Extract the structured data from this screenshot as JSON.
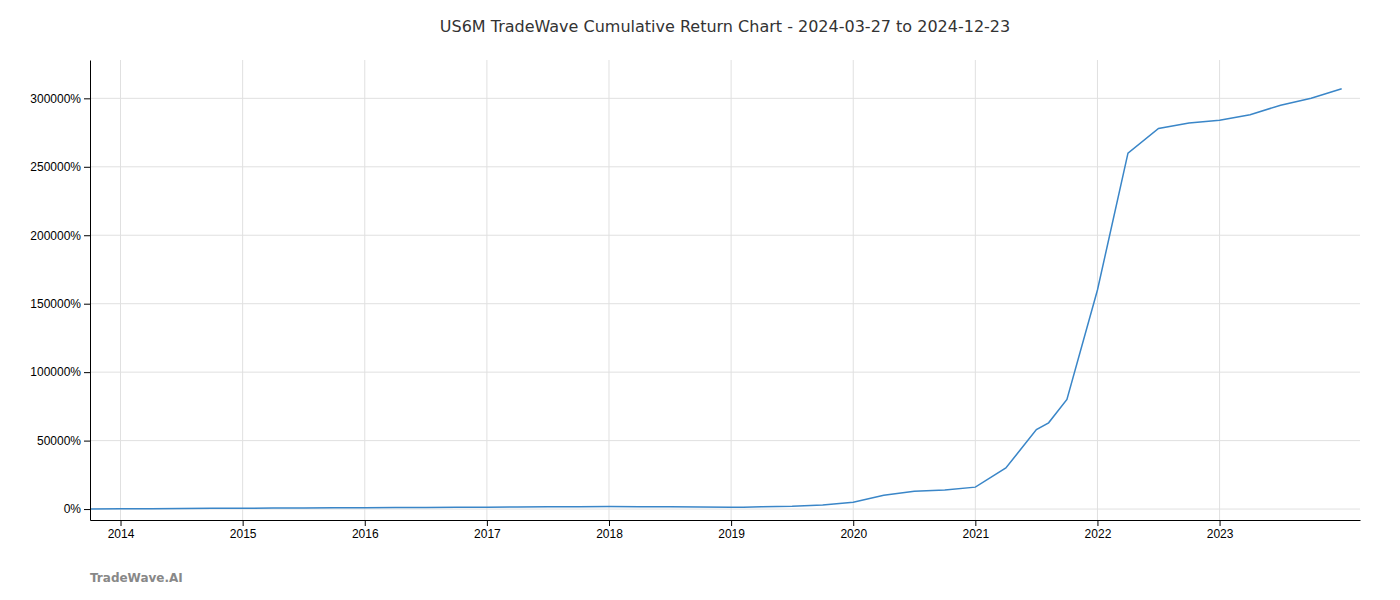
{
  "chart_data": {
    "type": "line",
    "title": "US6M TradeWave Cumulative Return Chart - 2024-03-27 to 2024-12-23",
    "annotations": [
      "TradeWave.AI"
    ],
    "x": [
      2013.75,
      2014.0,
      2014.25,
      2014.5,
      2014.75,
      2015.0,
      2015.25,
      2015.5,
      2015.75,
      2016.0,
      2016.25,
      2016.5,
      2016.75,
      2017.0,
      2017.25,
      2017.5,
      2017.75,
      2018.0,
      2018.25,
      2018.5,
      2018.75,
      2019.0,
      2019.1,
      2019.25,
      2019.5,
      2019.75,
      2020.0,
      2020.25,
      2020.5,
      2020.75,
      2021.0,
      2021.25,
      2021.5,
      2021.6,
      2021.75,
      2022.0,
      2022.1,
      2022.25,
      2022.5,
      2022.75,
      2023.0,
      2023.25,
      2023.5,
      2023.75,
      2024.0
    ],
    "values": [
      100,
      200,
      300,
      400,
      500,
      600,
      700,
      800,
      900,
      1000,
      1100,
      1200,
      1300,
      1400,
      1500,
      1600,
      1700,
      1800,
      1700,
      1600,
      1500,
      1400,
      1300,
      1600,
      2000,
      3000,
      5000,
      10000,
      13000,
      14000,
      16000,
      30000,
      58000,
      63000,
      80000,
      160000,
      200000,
      260000,
      278000,
      282000,
      284000,
      288000,
      295000,
      300000,
      307000
    ],
    "color": "#3a86c8",
    "xlim": [
      2013.75,
      2024.15
    ],
    "xticks": [
      2014,
      2015,
      2016,
      2017,
      2018,
      2019,
      2020,
      2021,
      2022,
      2023
    ],
    "ylim": [
      -8000,
      328000
    ],
    "yticks": [
      {
        "value": 0,
        "label": "0%"
      },
      {
        "value": 50000,
        "label": "50000%"
      },
      {
        "value": 100000,
        "label": "100000%"
      },
      {
        "value": 150000,
        "label": "150000%"
      },
      {
        "value": 200000,
        "label": "200000%"
      },
      {
        "value": 250000,
        "label": "250000%"
      },
      {
        "value": 300000,
        "label": "300000%"
      }
    ],
    "grid": true
  }
}
